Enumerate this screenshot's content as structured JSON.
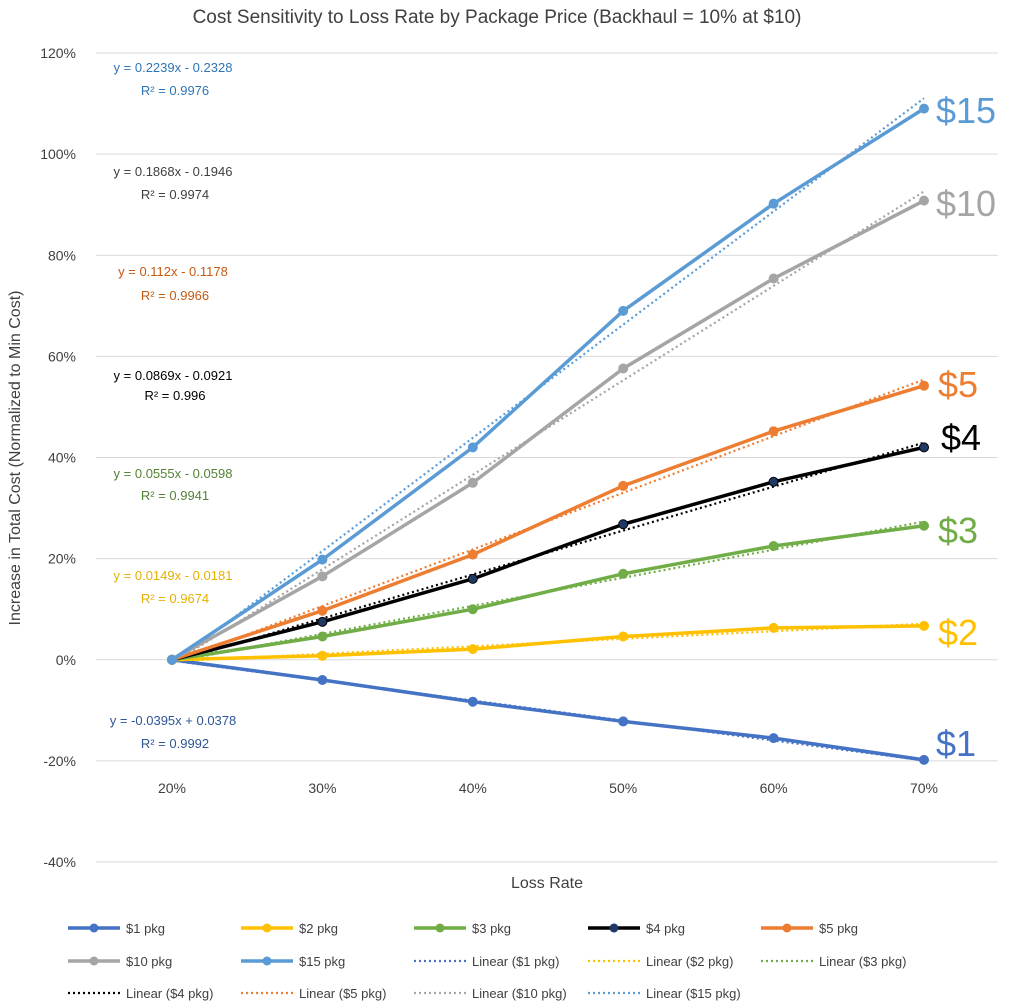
{
  "chart_data": {
    "type": "line",
    "title": "Cost Sensitivity to Loss Rate by Package Price (Backhaul = 10% at $10)",
    "xlabel": "Loss Rate",
    "ylabel": "Increase in Total Cost (Normalized to Min Cost)",
    "categories": [
      "20%",
      "30%",
      "40%",
      "50%",
      "60%",
      "70%"
    ],
    "y_ticks": [
      "120%",
      "100%",
      "80%",
      "60%",
      "40%",
      "20%",
      "0%",
      "-20%",
      "-40%"
    ],
    "ylim": [
      -0.4,
      1.2
    ],
    "grid": true,
    "legend_position": "bottom",
    "series": [
      {
        "name": "$1 pkg",
        "end_label": "$1",
        "color": "#4472C4",
        "values": [
          0,
          -0.04,
          -0.083,
          -0.122,
          -0.155,
          -0.198
        ],
        "trend": {
          "name": "Linear ($1 pkg)",
          "slope": -0.0395,
          "intercept": 0.0378,
          "equation": "y = -0.0395x + 0.0378",
          "r2": "R² = 0.9992"
        }
      },
      {
        "name": "$2 pkg",
        "end_label": "$2",
        "color": "#FFC000",
        "values": [
          0,
          0.008,
          0.021,
          0.046,
          0.063,
          0.067
        ],
        "trend": {
          "name": "Linear ($2 pkg)",
          "slope": 0.0149,
          "intercept": -0.0181,
          "equation": "y = 0.0149x - 0.0181",
          "r2": "R² = 0.9674"
        }
      },
      {
        "name": "$3 pkg",
        "end_label": "$3",
        "color": "#70AD47",
        "values": [
          0,
          0.046,
          0.1,
          0.17,
          0.225,
          0.265
        ],
        "trend": {
          "name": "Linear ($3 pkg)",
          "slope": 0.0555,
          "intercept": -0.0598,
          "equation": "y = 0.0555x - 0.0598",
          "r2": "R² = 0.9941"
        }
      },
      {
        "name": "$4 pkg",
        "end_label": "$4",
        "color": "#000000",
        "values": [
          0,
          0.075,
          0.16,
          0.268,
          0.352,
          0.42
        ],
        "trend": {
          "name": "Linear ($4 pkg)",
          "slope": 0.0869,
          "intercept": -0.0921,
          "equation": "y = 0.0869x - 0.0921",
          "r2": "R² = 0.996"
        }
      },
      {
        "name": "$5 pkg",
        "end_label": "$5",
        "color": "#ED7D31",
        "values": [
          0,
          0.097,
          0.208,
          0.344,
          0.452,
          0.542
        ],
        "trend": {
          "name": "Linear ($5 pkg)",
          "slope": 0.112,
          "intercept": -0.1178,
          "equation": "y = 0.112x - 0.1178",
          "r2": "R² = 0.9966"
        }
      },
      {
        "name": "$10 pkg",
        "end_label": "$10",
        "color": "#A5A5A5",
        "values": [
          0,
          0.165,
          0.35,
          0.576,
          0.754,
          0.908
        ],
        "trend": {
          "name": "Linear ($10 pkg)",
          "slope": 0.1868,
          "intercept": -0.1946,
          "equation": "y = 0.1868x - 0.1946",
          "r2": "R² = 0.9974"
        }
      },
      {
        "name": "$15 pkg",
        "end_label": "$15",
        "color": "#5B9BD5",
        "values": [
          0,
          0.198,
          0.42,
          0.69,
          0.902,
          1.09
        ],
        "trend": {
          "name": "Linear ($15 pkg)",
          "slope": 0.2239,
          "intercept": -0.2328,
          "equation": "y = 0.2239x - 0.2328",
          "r2": "R² = 0.9976"
        }
      }
    ],
    "equation_colors": {
      "$15": "#2E75B6",
      "$10": "#404040",
      "$5": "#C55A11",
      "$4": "#000000",
      "$3": "#548235",
      "$2": "#E6B000",
      "$1": "#2F5597"
    },
    "legend_order": [
      "$1 pkg",
      "$2 pkg",
      "$3 pkg",
      "$4 pkg",
      "$5 pkg",
      "$10 pkg",
      "$15 pkg",
      "Linear ($1 pkg)",
      "Linear ($2 pkg)",
      "Linear ($3 pkg)",
      "Linear ($4 pkg)",
      "Linear ($5 pkg)",
      "Linear ($10 pkg)",
      "Linear ($15 pkg)"
    ]
  }
}
